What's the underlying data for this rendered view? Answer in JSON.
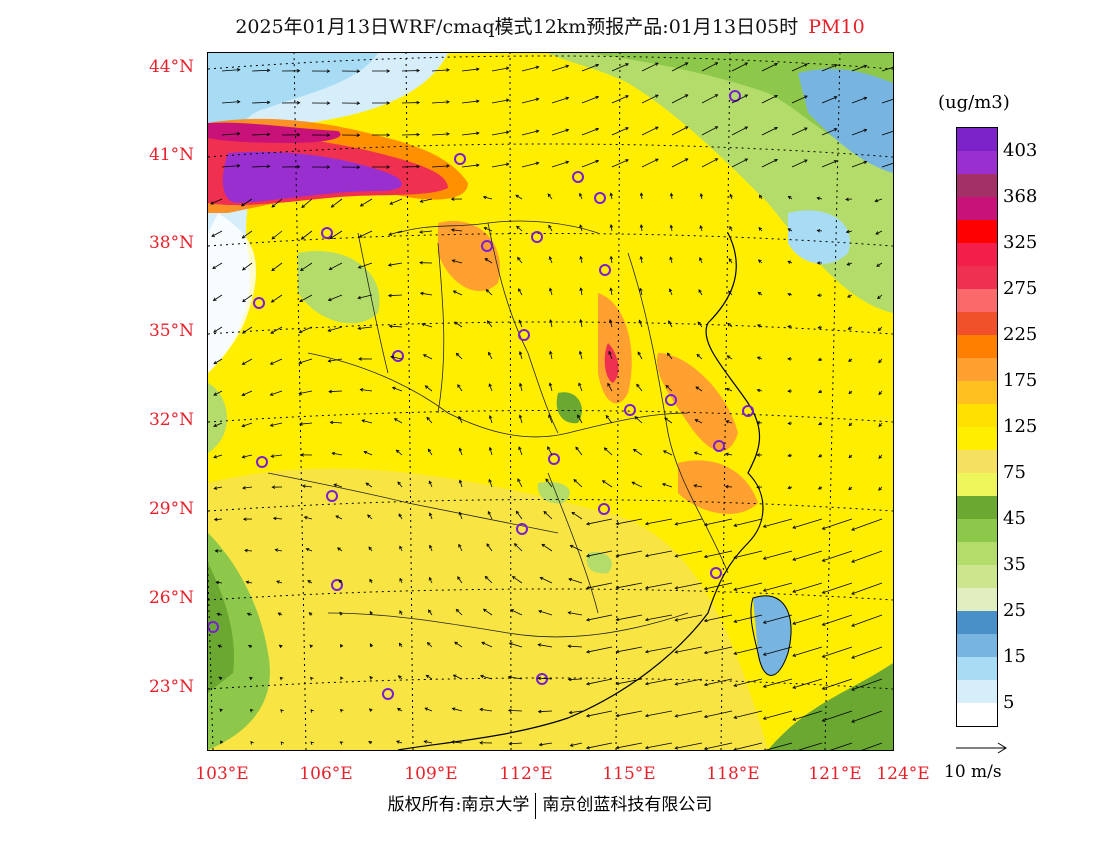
{
  "title": {
    "main": "2025年01月13日WRF/cmaq模式12km预报产品:01月13日05时",
    "species": "PM10",
    "species_color": "#e8202a"
  },
  "axes": {
    "lat_labels": [
      "44°N",
      "41°N",
      "38°N",
      "35°N",
      "32°N",
      "29°N",
      "26°N",
      "23°N"
    ],
    "lon_labels": [
      "103°E",
      "106°E",
      "109°E",
      "112°E",
      "115°E",
      "118°E",
      "121°E",
      "124°E"
    ],
    "label_color": "#e8202a"
  },
  "legend": {
    "unit": "(ug/m3)",
    "levels": [
      {
        "label": "403",
        "color": "#7b22c9"
      },
      {
        "label": "",
        "color": "#9a2fd0"
      },
      {
        "label": "368",
        "color": "#a33168"
      },
      {
        "label": "",
        "color": "#c8127a"
      },
      {
        "label": "325",
        "color": "#ff0000"
      },
      {
        "label": "",
        "color": "#f41e4a"
      },
      {
        "label": "275",
        "color": "#f03050"
      },
      {
        "label": "",
        "color": "#fb6a6a"
      },
      {
        "label": "225",
        "color": "#f0502a"
      },
      {
        "label": "",
        "color": "#ff8000"
      },
      {
        "label": "175",
        "color": "#ffa030"
      },
      {
        "label": "",
        "color": "#ffc020"
      },
      {
        "label": "125",
        "color": "#ffe000"
      },
      {
        "label": "",
        "color": "#ffee00"
      },
      {
        "label": "75",
        "color": "#f5e060"
      },
      {
        "label": "",
        "color": "#eef55a"
      },
      {
        "label": "45",
        "color": "#6aa832"
      },
      {
        "label": "",
        "color": "#8ec84a"
      },
      {
        "label": "35",
        "color": "#b4dc6a"
      },
      {
        "label": "",
        "color": "#cde68e"
      },
      {
        "label": "25",
        "color": "#e0eec0"
      },
      {
        "label": "",
        "color": "#4a90c8"
      },
      {
        "label": "15",
        "color": "#78b4e0"
      },
      {
        "label": "",
        "color": "#a8dcf4"
      },
      {
        "label": "5",
        "color": "#d6eefa"
      },
      {
        "label": "",
        "color": "#ffffff"
      }
    ]
  },
  "wind_reference": {
    "label": "10 m/s"
  },
  "footer": {
    "left": "版权所有:南京大学",
    "right": "南京创蓝科技有限公司"
  },
  "map_regions": [
    {
      "name": "base-field",
      "color": "#ffee00"
    },
    {
      "name": "northwest-clean",
      "color": "#d6eefa"
    },
    {
      "name": "north-green",
      "color": "#8ec84a"
    },
    {
      "name": "plume-purple",
      "color": "#9a2fd0"
    },
    {
      "name": "plume-red",
      "color": "#f41e4a"
    },
    {
      "name": "east-orange",
      "color": "#ffa030"
    },
    {
      "name": "south-green",
      "color": "#6aa832"
    }
  ]
}
